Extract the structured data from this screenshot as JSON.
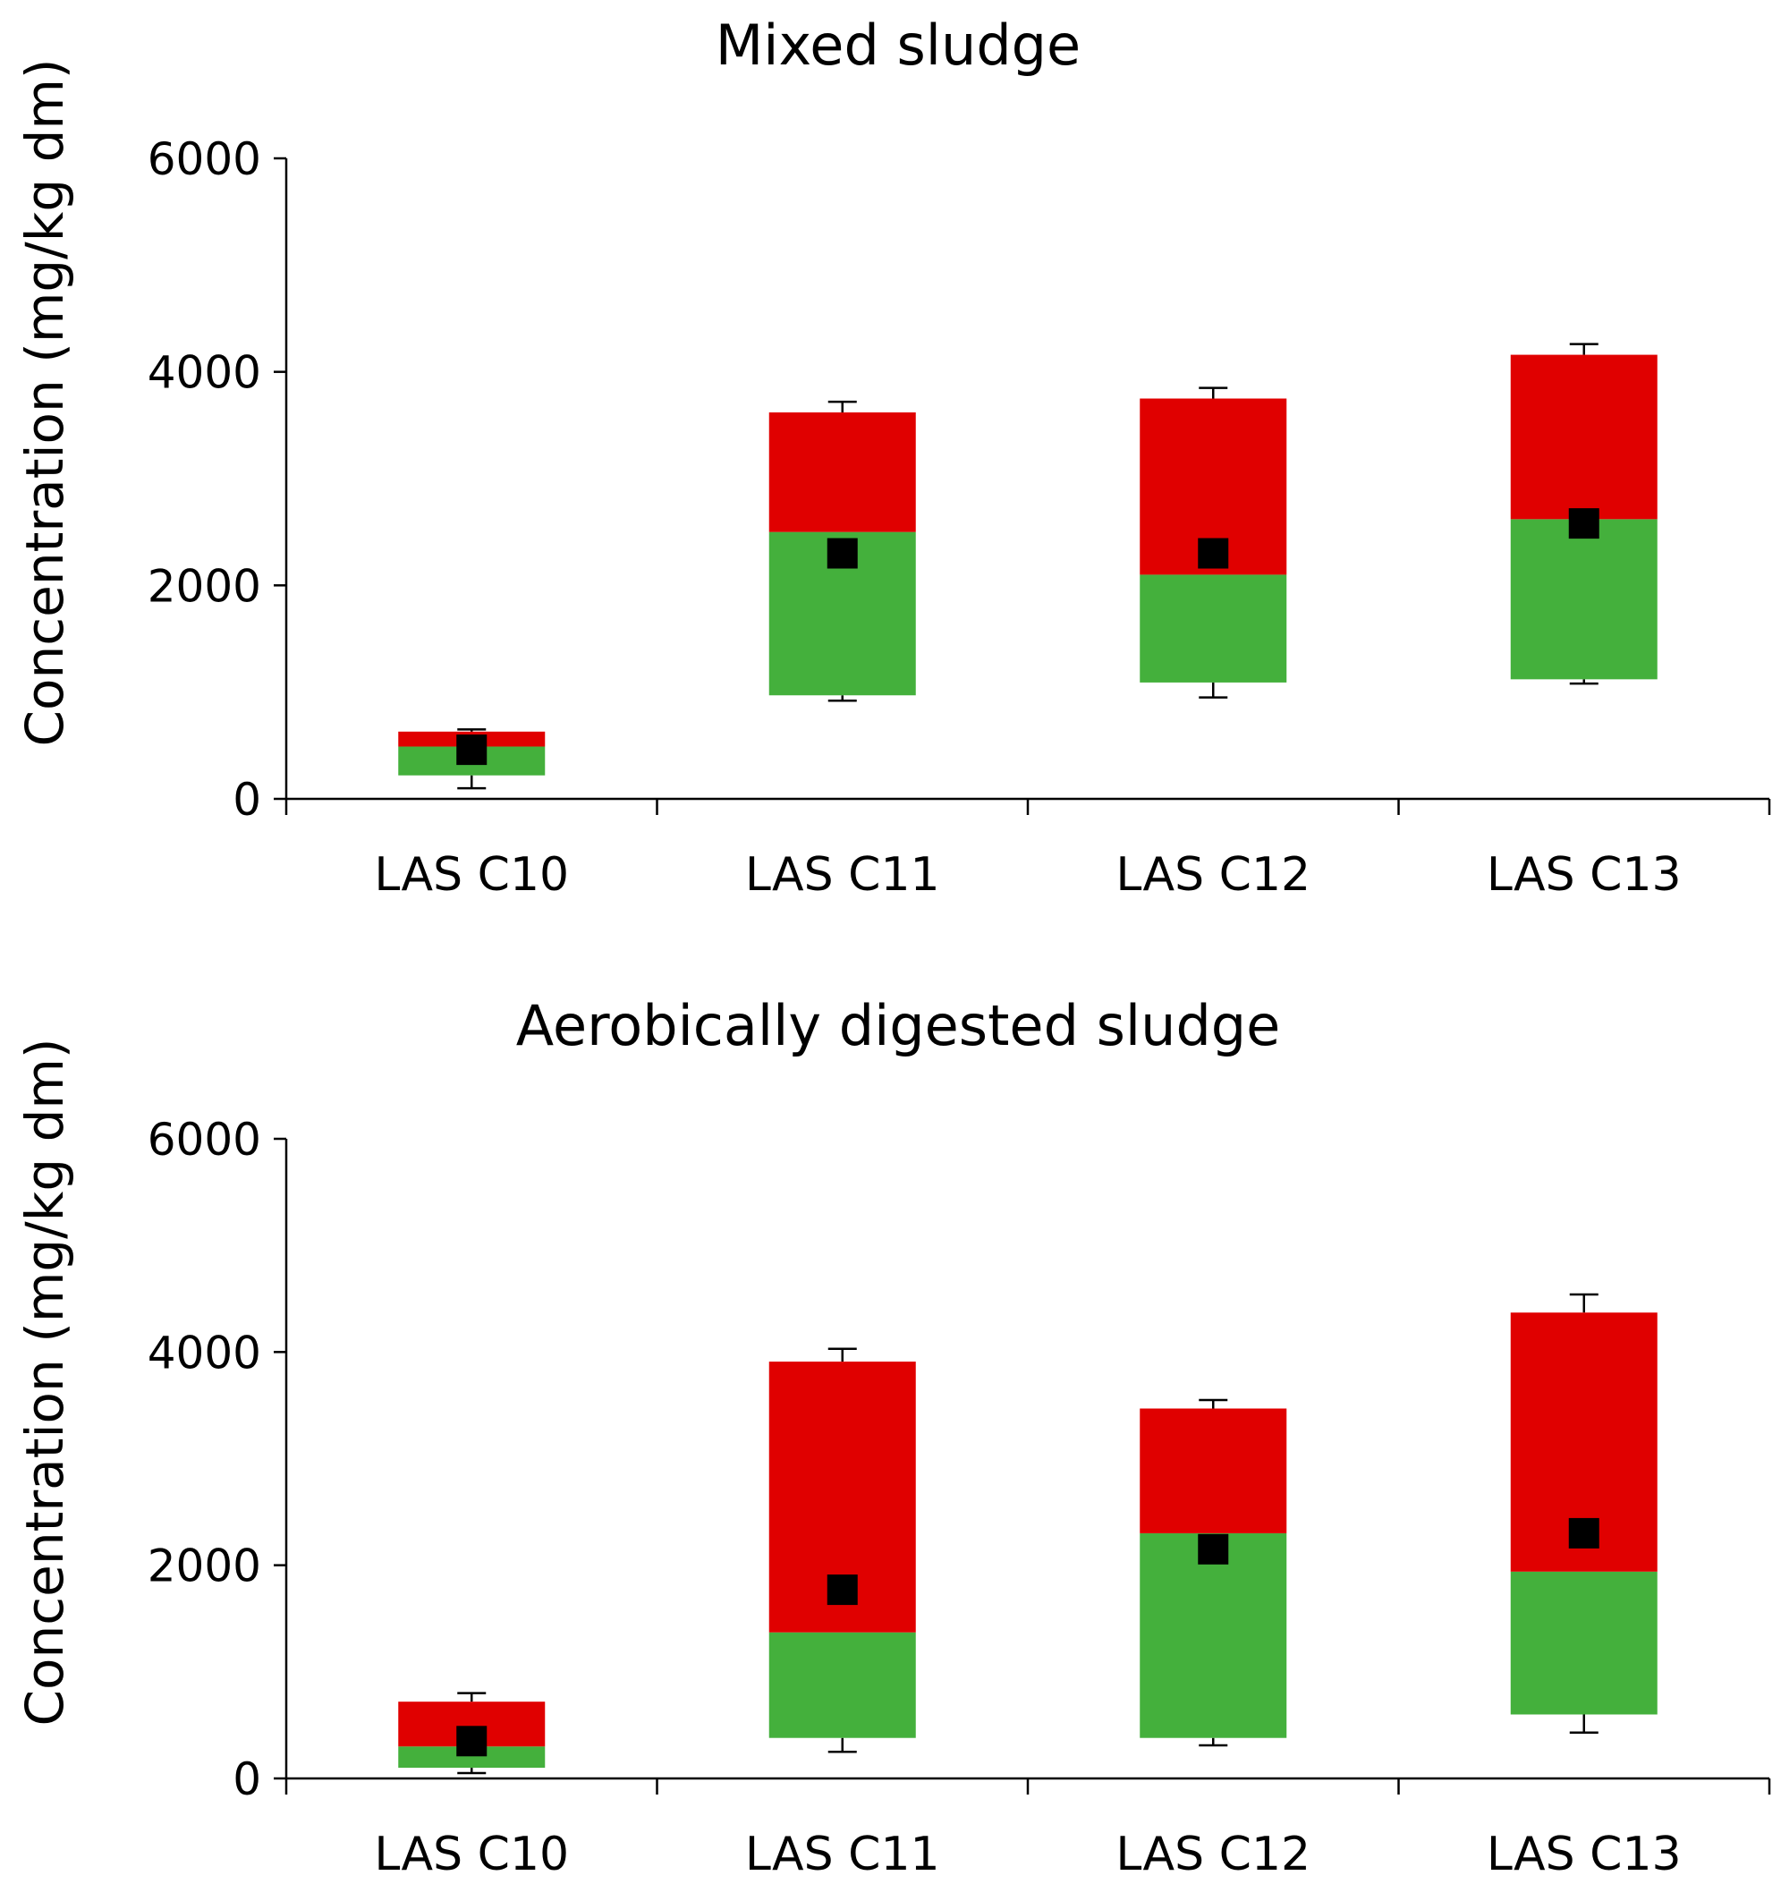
{
  "chart_data": [
    {
      "type": "box",
      "title": "Mixed sludge",
      "ylabel": "Concentration (mg/kg dm)",
      "xlabel": "",
      "ylim": [
        0,
        6000
      ],
      "yticks": [
        0,
        2000,
        4000,
        6000
      ],
      "categories": [
        "LAS C10",
        "LAS C11",
        "LAS C12",
        "LAS C13"
      ],
      "boxes": [
        {
          "category": "LAS C10",
          "whisker_low": 100,
          "q1": 220,
          "median": 490,
          "q3": 630,
          "whisker_high": 650,
          "mean": 460
        },
        {
          "category": "LAS C11",
          "whisker_low": 920,
          "q1": 970,
          "median": 2500,
          "q3": 3620,
          "whisker_high": 3720,
          "mean": 2300
        },
        {
          "category": "LAS C12",
          "whisker_low": 950,
          "q1": 1090,
          "median": 2100,
          "q3": 3750,
          "whisker_high": 3850,
          "mean": 2300
        },
        {
          "category": "LAS C13",
          "whisker_low": 1080,
          "q1": 1120,
          "median": 2620,
          "q3": 4160,
          "whisker_high": 4260,
          "mean": 2580
        }
      ],
      "colors": {
        "lower_box": "#44b03c",
        "upper_box": "#e00000",
        "mean_marker": "#000000",
        "whisker": "#000000",
        "axis": "#000000"
      }
    },
    {
      "type": "box",
      "title": "Aerobically digested sludge",
      "ylabel": "Concentration (mg/kg dm)",
      "xlabel": "",
      "ylim": [
        0,
        6000
      ],
      "yticks": [
        0,
        2000,
        4000,
        6000
      ],
      "categories": [
        "LAS C10",
        "LAS C11",
        "LAS C12",
        "LAS C13"
      ],
      "boxes": [
        {
          "category": "LAS C10",
          "whisker_low": 50,
          "q1": 100,
          "median": 300,
          "q3": 720,
          "whisker_high": 800,
          "mean": 350
        },
        {
          "category": "LAS C11",
          "whisker_low": 250,
          "q1": 380,
          "median": 1370,
          "q3": 3910,
          "whisker_high": 4030,
          "mean": 1770
        },
        {
          "category": "LAS C12",
          "whisker_low": 310,
          "q1": 380,
          "median": 2300,
          "q3": 3470,
          "whisker_high": 3550,
          "mean": 2150
        },
        {
          "category": "LAS C13",
          "whisker_low": 430,
          "q1": 600,
          "median": 1940,
          "q3": 4370,
          "whisker_high": 4540,
          "mean": 2300
        }
      ],
      "colors": {
        "lower_box": "#44b03c",
        "upper_box": "#e00000",
        "mean_marker": "#000000",
        "whisker": "#000000",
        "axis": "#000000"
      }
    }
  ]
}
